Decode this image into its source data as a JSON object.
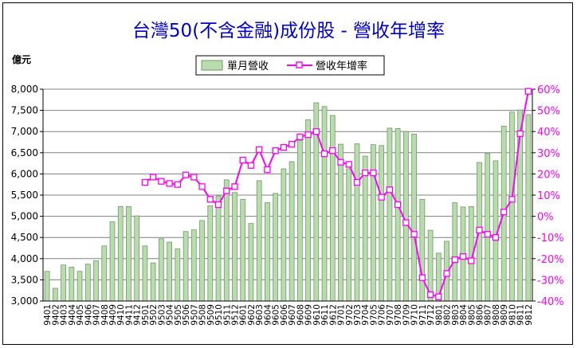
{
  "chart_data": {
    "type": "bar+line",
    "title": "台灣50(不含金融)成份股 - 營收年增率",
    "ylabel_left": "億元",
    "ylabel_right": "",
    "legend": {
      "placement": "top",
      "items": [
        "單月營收",
        "營收年增率"
      ]
    },
    "grid": true,
    "colors": {
      "bars": "#b8dcae",
      "bar_edge": "#6f9a64",
      "line": "#ff00ff",
      "right_axis_text": "#ff00ff",
      "title": "#0000cc",
      "plot_bg": "#ffffff"
    },
    "ylim_left": [
      3000,
      8000
    ],
    "ylim_right": [
      -40,
      60
    ],
    "left_ticks": [
      "3,000",
      "3,500",
      "4,000",
      "4,500",
      "5,000",
      "5,500",
      "6,000",
      "6,500",
      "7,000",
      "7,500",
      "8,000"
    ],
    "right_ticks": [
      "-40%",
      "-30%",
      "-20%",
      "-10%",
      "0%",
      "10%",
      "20%",
      "30%",
      "40%",
      "50%",
      "60%"
    ],
    "categories": [
      "9401",
      "9402",
      "9403",
      "9404",
      "9405",
      "9406",
      "9407",
      "9408",
      "9409",
      "9410",
      "9411",
      "9412",
      "9501",
      "9502",
      "9503",
      "9504",
      "9505",
      "9506",
      "9507",
      "9508",
      "9509",
      "9510",
      "9511",
      "9512",
      "9601",
      "9602",
      "9603",
      "9604",
      "9605",
      "9606",
      "9607",
      "9608",
      "9609",
      "9610",
      "9611",
      "9612",
      "9701",
      "9702",
      "9703",
      "9704",
      "9705",
      "9706",
      "9707",
      "9708",
      "9709",
      "9710",
      "9711",
      "9712",
      "9801",
      "9802",
      "9803",
      "9804",
      "9805",
      "9806",
      "9807",
      "9808",
      "9809",
      "9810",
      "9811",
      "9812"
    ],
    "series": [
      {
        "name": "單月營收",
        "axis": "left",
        "values": [
          3700,
          3300,
          3850,
          3800,
          3700,
          3870,
          3950,
          4300,
          4870,
          5230,
          5230,
          5010,
          4300,
          3900,
          4470,
          4390,
          4230,
          4640,
          4680,
          4900,
          5250,
          5480,
          5860,
          5560,
          5400,
          4830,
          5840,
          5320,
          5540,
          6120,
          6290,
          6790,
          7280,
          7680,
          7590,
          7380,
          6700,
          6120,
          6710,
          6420,
          6690,
          6670,
          7080,
          7070,
          7000,
          6940,
          5400,
          4670,
          4130,
          4410,
          5320,
          5220,
          5230,
          6270,
          6480,
          6310,
          7130,
          7460,
          7510,
          7400
        ]
      },
      {
        "name": "營收年增率",
        "axis": "right",
        "values": [
          null,
          null,
          null,
          null,
          null,
          null,
          null,
          null,
          null,
          null,
          null,
          null,
          16,
          18.5,
          16.5,
          15.5,
          15,
          19.5,
          18.5,
          14,
          8,
          5.5,
          12,
          14,
          26.5,
          24,
          31.5,
          22,
          31,
          32.5,
          34,
          37.5,
          38.5,
          40,
          29.5,
          31,
          25.5,
          24.5,
          16,
          20.5,
          20.5,
          9,
          12.5,
          5.5,
          -3,
          -8.5,
          -29,
          -37,
          -38,
          -27,
          -20.5,
          -19,
          -21,
          -6.5,
          -8.5,
          -10,
          2,
          8,
          39,
          59
        ]
      }
    ]
  }
}
